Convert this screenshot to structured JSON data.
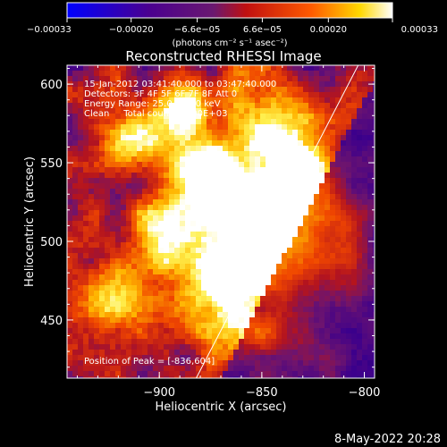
{
  "chart_data": {
    "type": "heatmap",
    "title": "Reconstructed RHESSI Image",
    "xlabel": "Heliocentric X (arcsec)",
    "ylabel": "Heliocentric Y (arcsec)",
    "xlim": [
      -945,
      -795
    ],
    "ylim": [
      413,
      612
    ],
    "x_ticks": [
      -900,
      -850,
      -800
    ],
    "x_tick_labels": [
      "−900",
      "−850",
      "−800"
    ],
    "y_ticks": [
      450,
      500,
      550,
      600
    ],
    "y_tick_labels": [
      "450",
      "500",
      "550",
      "600"
    ],
    "colorbar": {
      "range": [
        -0.00033,
        0.00033
      ],
      "ticks": [
        -0.00033,
        -0.0002,
        -6.6e-05,
        6.6e-05,
        0.0002,
        0.00033
      ],
      "tick_labels": [
        "−0.00033",
        "−0.00020",
        "−6.6e−05",
        "6.6e−05",
        "0.00020",
        "0.00033"
      ],
      "unit_label": "(photons cm⁻² s⁻¹ asec⁻²)",
      "colors": [
        "#0000ff",
        "#3a008a",
        "#5a0f8c",
        "#b01818",
        "#ff4400",
        "#ffd000",
        "#ffffff"
      ]
    },
    "annotations": [
      "15-Jan-2012 03:41:40.000 to 03:47:40.000",
      "Detectors: 3F 4F 5F 6F 7F 8F  Att 0",
      "Energy Range: 25.0 - 50.0 keV",
      "Clean     Total counts: 8.90E+03"
    ],
    "peak": {
      "label": "Position of Peak = [-836,604]",
      "x": -836,
      "y": 604
    },
    "limb_line": {
      "x": [
        -882,
        -803
      ],
      "y": [
        413,
        612
      ]
    },
    "features": [
      {
        "x": -855,
        "y": 515,
        "intensity": 1.0,
        "sx": 18,
        "sy": 40,
        "rot": -0.55
      },
      {
        "x": -835,
        "y": 555,
        "intensity": 0.8,
        "sx": 12,
        "sy": 30,
        "rot": -0.4
      },
      {
        "x": -870,
        "y": 470,
        "intensity": 0.7,
        "sx": 14,
        "sy": 25,
        "rot": -0.3
      },
      {
        "x": -900,
        "y": 505,
        "intensity": 0.6,
        "sx": 10,
        "sy": 12,
        "rot": 0
      },
      {
        "x": -915,
        "y": 565,
        "intensity": 0.55,
        "sx": 12,
        "sy": 10,
        "rot": 0
      },
      {
        "x": -890,
        "y": 585,
        "intensity": 0.55,
        "sx": 10,
        "sy": 12,
        "rot": 0
      },
      {
        "x": -920,
        "y": 470,
        "intensity": 0.5,
        "sx": 12,
        "sy": 15,
        "rot": 0
      },
      {
        "x": -845,
        "y": 440,
        "intensity": 0.5,
        "sx": 10,
        "sy": 12,
        "rot": 0
      },
      {
        "x": -808,
        "y": 505,
        "intensity": 0.35,
        "sx": 10,
        "sy": 18,
        "rot": 0
      },
      {
        "x": -875,
        "y": 540,
        "intensity": 0.45,
        "sx": 10,
        "sy": 14,
        "rot": 0
      }
    ]
  },
  "footer": {
    "date": "8-May-2022 20:28"
  }
}
